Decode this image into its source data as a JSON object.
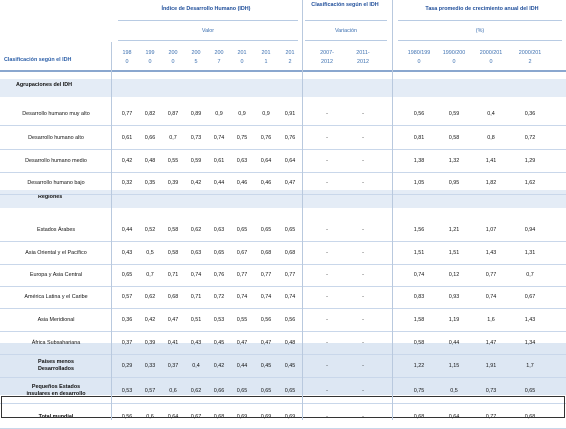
{
  "group_headers": {
    "idh": "Índice de Desarrollo Humano (IDH)",
    "clasificacion": "Clasificación según el IDH",
    "tasa": "Tasa promedio de crecimiento anual del IDH"
  },
  "sub_headers": {
    "valor": "Valor",
    "variacion": "Variación",
    "pct": "(%)"
  },
  "row_label_header": "Clasificación según el IDH",
  "columns": [
    {
      "top": "198",
      "bottom": "0"
    },
    {
      "top": "199",
      "bottom": "0"
    },
    {
      "top": "200",
      "bottom": "0"
    },
    {
      "top": "200",
      "bottom": "5"
    },
    {
      "top": "200",
      "bottom": "7"
    },
    {
      "top": "201",
      "bottom": "0"
    },
    {
      "top": "201",
      "bottom": "1"
    },
    {
      "top": "201",
      "bottom": "2"
    },
    {
      "top": "2007-",
      "bottom": "2012"
    },
    {
      "top": "2011-",
      "bottom": "2012"
    },
    {
      "top": "1980/199",
      "bottom": "0"
    },
    {
      "top": "1990/200",
      "bottom": "0"
    },
    {
      "top": "2000/201",
      "bottom": "0"
    },
    {
      "top": "2000/201",
      "bottom": "2"
    }
  ],
  "sections": {
    "agrupaciones": "Agrupaciones del IDH",
    "regiones": "Regiones"
  },
  "rows": [
    {
      "label": [
        "Desarrollo humano muy alto"
      ],
      "values": [
        "0,77",
        "0,82",
        "0,87",
        "0,89",
        "0,9",
        "0,9",
        "0,9",
        "0,91",
        "-",
        "-",
        "0,56",
        "0,59",
        "0,4",
        "0,36"
      ]
    },
    {
      "label": [
        "Desarrollo humano alto"
      ],
      "values": [
        "0,61",
        "0,66",
        "0,7",
        "0,73",
        "0,74",
        "0,75",
        "0,76",
        "0,76",
        "-",
        "-",
        "0,81",
        "0,58",
        "0,8",
        "0,72"
      ]
    },
    {
      "label": [
        "Desarrollo humano medio"
      ],
      "values": [
        "0,42",
        "0,48",
        "0,55",
        "0,59",
        "0,61",
        "0,63",
        "0,64",
        "0,64",
        "-",
        "-",
        "1,38",
        "1,32",
        "1,41",
        "1,29"
      ]
    },
    {
      "label": [
        "Desarrollo humano bajo"
      ],
      "values": [
        "0,32",
        "0,35",
        "0,39",
        "0,42",
        "0,44",
        "0,46",
        "0,46",
        "0,47",
        "-",
        "-",
        "1,05",
        "0,95",
        "1,82",
        "1,62"
      ]
    },
    {
      "label": [
        "Estados Árabes"
      ],
      "values": [
        "0,44",
        "0,52",
        "0,58",
        "0,62",
        "0,63",
        "0,65",
        "0,65",
        "0,65",
        "-",
        "-",
        "1,56",
        "1,21",
        "1,07",
        "0,94"
      ]
    },
    {
      "label": [
        "Asia Oriental y el Pacífico"
      ],
      "values": [
        "0,43",
        "0,5",
        "0,58",
        "0,63",
        "0,65",
        "0,67",
        "0,68",
        "0,68",
        "-",
        "-",
        "1,51",
        "1,51",
        "1,43",
        "1,31"
      ]
    },
    {
      "label": [
        "Europa y Asia Central"
      ],
      "values": [
        "0,65",
        "0,7",
        "0,71",
        "0,74",
        "0,76",
        "0,77",
        "0,77",
        "0,77",
        "-",
        "-",
        "0,74",
        "0,12",
        "0,77",
        "0,7"
      ]
    },
    {
      "label": [
        "América Latina y el Caribe"
      ],
      "values": [
        "0,57",
        "0,62",
        "0,68",
        "0,71",
        "0,72",
        "0,74",
        "0,74",
        "0,74",
        "-",
        "-",
        "0,83",
        "0,93",
        "0,74",
        "0,67"
      ]
    },
    {
      "label": [
        "Asia Meridional"
      ],
      "values": [
        "0,36",
        "0,42",
        "0,47",
        "0,51",
        "0,53",
        "0,55",
        "0,56",
        "0,56",
        "-",
        "-",
        "1,58",
        "1,19",
        "1,6",
        "1,43"
      ]
    },
    {
      "label": [
        "África Subsahariana"
      ],
      "values": [
        "0,37",
        "0,39",
        "0,41",
        "0,43",
        "0,45",
        "0,47",
        "0,47",
        "0,48",
        "-",
        "-",
        "0,58",
        "0,44",
        "1,47",
        "1,34"
      ]
    },
    {
      "label": [
        "Países menos",
        "Desarrollados"
      ],
      "values": [
        "0,29",
        "0,33",
        "0,37",
        "0,4",
        "0,42",
        "0,44",
        "0,45",
        "0,45",
        "-",
        "-",
        "1,22",
        "1,15",
        "1,91",
        "1,7"
      ]
    },
    {
      "label": [
        "Pequeños Estados",
        "insulares en desarrollo"
      ],
      "values": [
        "0,53",
        "0,57",
        "0,6",
        "0,62",
        "0,66",
        "0,65",
        "0,65",
        "0,65",
        "-",
        "-",
        "0,75",
        "0,5",
        "0,73",
        "0,65"
      ]
    },
    {
      "label": [
        "Total mundial"
      ],
      "values": [
        "0,56",
        "0,6",
        "0,64",
        "0,67",
        "0,68",
        "0,69",
        "0,69",
        "0,69",
        "-",
        "-",
        "0,68",
        "0,64",
        "0,77",
        "0,68"
      ]
    }
  ],
  "colors": {
    "header_text": "#1f4e9a",
    "band": "#dde7f3",
    "rule": "#9fb7d6"
  }
}
